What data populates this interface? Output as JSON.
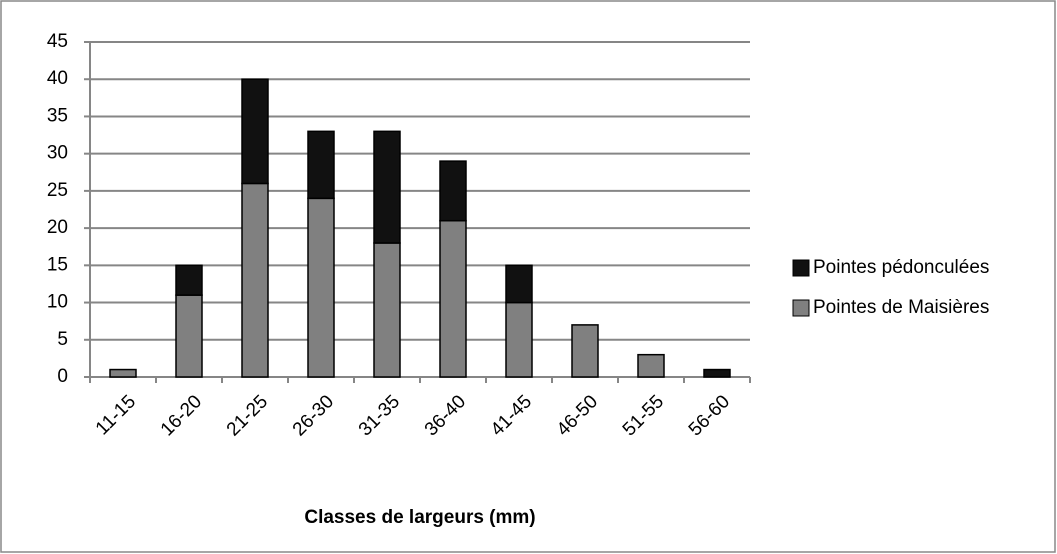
{
  "chart_data": {
    "type": "stacked_bar",
    "x_label": "Classes de largeurs (mm)",
    "categories": [
      "11-15",
      "16-20",
      "21-25",
      "26-30",
      "31-35",
      "36-40",
      "41-45",
      "46-50",
      "51-55",
      "56-60"
    ],
    "series": [
      {
        "name": "Pointes de Maisières",
        "color": "#808080",
        "values": [
          1,
          11,
          26,
          24,
          18,
          21,
          10,
          7,
          3,
          0
        ]
      },
      {
        "name": "Pointes pédonculées",
        "color": "#111111",
        "values": [
          0,
          4,
          14,
          9,
          15,
          8,
          5,
          0,
          0,
          1
        ]
      }
    ],
    "ylim": [
      0,
      45
    ],
    "yticks": [
      0,
      5,
      10,
      15,
      20,
      25,
      30,
      35,
      40,
      45
    ],
    "grid": true,
    "legend": "right"
  }
}
